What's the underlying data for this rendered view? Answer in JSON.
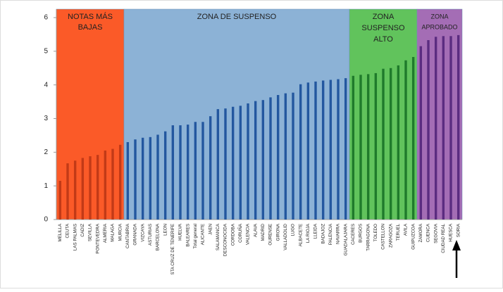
{
  "chart_data": {
    "type": "bar",
    "categories": [
      "MELILLA",
      "CEUTA",
      "LAS PALMAS",
      "CADIZ",
      "SEVILLA",
      "PONTEVEDRA",
      "ALMERIA",
      "MALAGA",
      "MURCIA",
      "CANTABRIA",
      "GRANADA",
      "VIZCAYA",
      "ASTURIAS",
      "BARCELONA",
      "LEON",
      "STA CRUZ DE TENERIFE",
      "HUELVA",
      "BALEARES",
      "Total general",
      "ALICANTE",
      "JAEN",
      "SALAMANCA",
      "DESCONOCIDA",
      "CORDOBA",
      "CORUÑA",
      "VALENCIA",
      "ALAVA",
      "MADRID",
      "OURENSE",
      "GIRONA",
      "VALLADOLID",
      "LUGO",
      "ALBACETE",
      "LA RIOJA",
      "LLEIDA",
      "BADAJOZ",
      "PALENCIA",
      "NAVARRA",
      "GUADALAJARA",
      "CACERES",
      "BURGOS",
      "TARRAGONA",
      "TOLEDO",
      "CASTELLON",
      "ZARAGOZA",
      "TERUEL",
      "AVILA",
      "GUIPUZCOA",
      "ZAMORA",
      "CUENCA",
      "SEGOVIA",
      "CIUDAD REAL",
      "HUESCA",
      "SORIA"
    ],
    "values": [
      1.15,
      1.67,
      1.75,
      1.83,
      1.88,
      1.92,
      2.05,
      2.1,
      2.22,
      2.3,
      2.38,
      2.43,
      2.45,
      2.52,
      2.62,
      2.8,
      2.8,
      2.82,
      2.9,
      2.9,
      3.07,
      3.28,
      3.3,
      3.35,
      3.38,
      3.45,
      3.52,
      3.55,
      3.63,
      3.7,
      3.75,
      3.77,
      4.02,
      4.07,
      4.1,
      4.13,
      4.15,
      4.17,
      4.2,
      4.27,
      4.3,
      4.32,
      4.35,
      4.48,
      4.5,
      4.58,
      4.73,
      4.83,
      5.15,
      5.33,
      5.43,
      5.45,
      5.45,
      5.48
    ],
    "zones": [
      {
        "label": [
          "NOTAS MÁS",
          "BAJAS"
        ],
        "first": "MELILLA",
        "last": "MURCIA",
        "color": "#fb5a28",
        "bar_color": "#c23a17"
      },
      {
        "label": [
          "ZONA DE SUSPENSO"
        ],
        "first": "CANTABRIA",
        "last": "GUADALAJARA",
        "color": "#8cb2d6",
        "bar_color": "#23579f"
      },
      {
        "label": [
          "ZONA",
          "SUSPENSO",
          "ALTO"
        ],
        "first": "CACERES",
        "last": "GUIPUZCOA",
        "color": "#61c35c",
        "bar_color": "#1f7a2b"
      },
      {
        "label": [
          "ZONA",
          "APROBADO"
        ],
        "first": "ZAMORA",
        "last": "SORIA",
        "color": "#a46db5",
        "bar_color": "#5b2c80"
      }
    ],
    "ylim": [
      0,
      6
    ],
    "yticks": [
      0,
      1,
      2,
      3,
      4,
      5,
      6
    ]
  }
}
